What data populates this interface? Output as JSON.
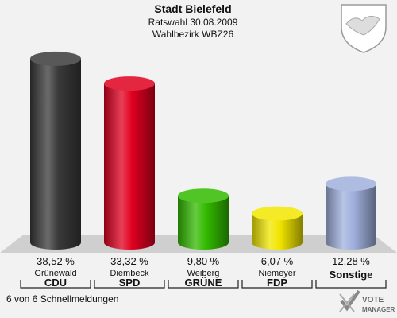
{
  "header": {
    "title": "Stadt Bielefeld",
    "subtitle1": "Ratswahl 30.08.2009",
    "subtitle2": "Wahlbezirk WBZ26"
  },
  "footer": {
    "status": "6 von 6 Schnellmeldungen",
    "logo_line1": "VOTE",
    "logo_line2": "MANAGER"
  },
  "chart_data": {
    "type": "bar",
    "categories": [
      "CDU",
      "SPD",
      "GRÜNE",
      "FDP",
      "Sonstige"
    ],
    "candidates": [
      "Grünewald",
      "Diembeck",
      "Weiberg",
      "Niemeyer",
      ""
    ],
    "values": [
      38.52,
      33.32,
      9.8,
      6.07,
      12.28
    ],
    "labels": [
      "38,52 %",
      "33,32 %",
      "9,80 %",
      "6,07 %",
      "12,28 %"
    ],
    "colors": [
      "#3a3a3a",
      "#e00020",
      "#33bb00",
      "#f2e600",
      "#a0b0dd"
    ],
    "unit": "%",
    "ylim": [
      0,
      40
    ]
  }
}
